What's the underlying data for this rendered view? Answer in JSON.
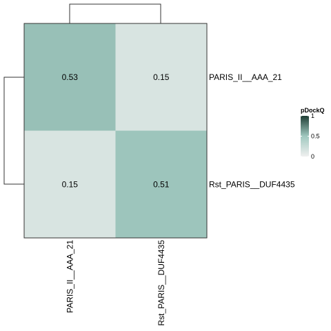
{
  "chart_data": {
    "type": "heatmap",
    "rows": [
      "PARIS_II__AAA_21",
      "Rst_PARIS__DUF4435"
    ],
    "cols": [
      "PARIS_II__AAA_21",
      "Rst_PARIS__DUF4435"
    ],
    "values": [
      [
        0.53,
        0.15
      ],
      [
        0.15,
        0.51
      ]
    ],
    "cell_labels": [
      [
        "0.53",
        "0.15"
      ],
      [
        "0.15",
        "0.51"
      ]
    ],
    "legend": {
      "title": "pDockQ",
      "ticks": [
        "1",
        "0.5",
        "0"
      ],
      "tick_values": [
        1,
        0.5,
        0
      ],
      "color_low": "#f0f0f0",
      "color_mid": "#a0c8bf",
      "color_high": "#1e3d34",
      "placement": "right"
    },
    "dendrograms": {
      "rows": true,
      "cols": true
    }
  }
}
